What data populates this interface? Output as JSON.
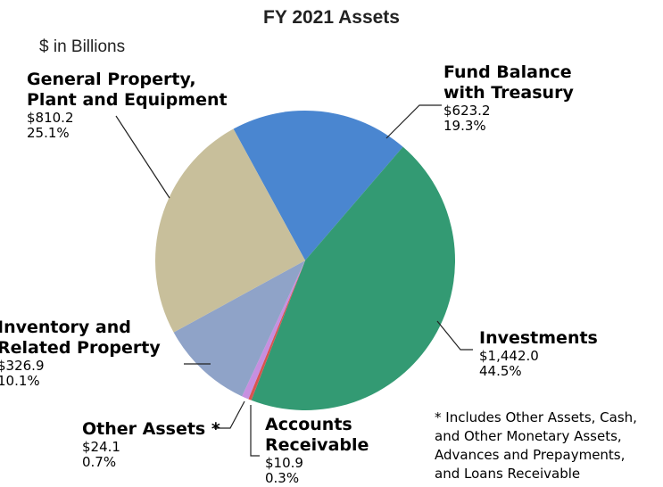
{
  "chart_data": {
    "type": "pie",
    "title": "FY 2021 Assets",
    "subtitle": "$ in Billions",
    "categories": [
      "Fund Balance\nwith Treasury",
      "Investments",
      "Accounts\nReceivable",
      "Other Assets *",
      "Inventory and\nRelated Property",
      "General Property,\nPlant and Equipment"
    ],
    "values": [
      623.2,
      1442.0,
      10.9,
      24.1,
      326.9,
      810.2
    ],
    "value_labels": [
      "$623.2",
      "$1,442.0",
      "$10.9",
      "$24.1",
      "$326.9",
      "$810.2"
    ],
    "percentages": [
      19.3,
      44.5,
      0.3,
      0.7,
      10.1,
      25.1
    ],
    "percentage_labels": [
      "19.3%",
      "44.5%",
      "0.3%",
      "0.7%",
      "10.1%",
      "25.1%"
    ],
    "colors": [
      "#4a86d0",
      "#339a73",
      "#d9534f",
      "#c78fe0",
      "#8fa3c8",
      "#c8bf9b"
    ],
    "annotation": "* Includes Other Assets, Cash,\n  and Other Monetary Assets,\n  Advances and Prepayments,\n  and Loans Receivable"
  }
}
